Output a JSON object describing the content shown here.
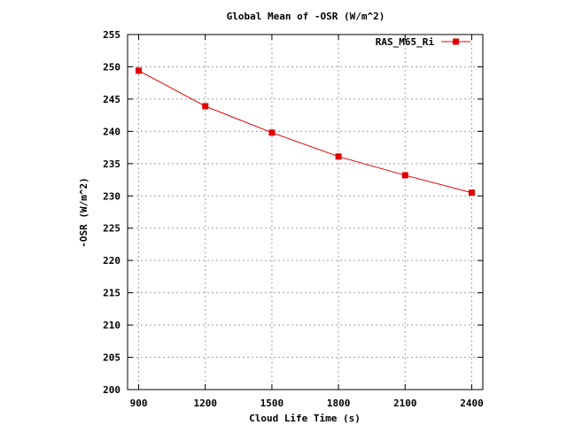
{
  "chart_data": {
    "type": "line",
    "title": "Global Mean of -OSR (W/m^2)",
    "xlabel": "Cloud Life Time (s)",
    "ylabel": "-OSR (W/m^2)",
    "x": [
      900,
      1200,
      1500,
      1800,
      2100,
      2400
    ],
    "x_ticks": [
      900,
      1200,
      1500,
      1800,
      2100,
      2400
    ],
    "xlim": [
      850,
      2450
    ],
    "ylim": [
      200,
      255
    ],
    "y_ticks": [
      200,
      205,
      210,
      215,
      220,
      225,
      230,
      235,
      240,
      245,
      250,
      255
    ],
    "grid": true,
    "legend_position": "top-right",
    "series": [
      {
        "name": "RAS_M65_Ri",
        "color": "#e00000",
        "marker": "square",
        "values": [
          249.4,
          243.9,
          239.8,
          236.1,
          233.2,
          230.5
        ]
      }
    ]
  }
}
